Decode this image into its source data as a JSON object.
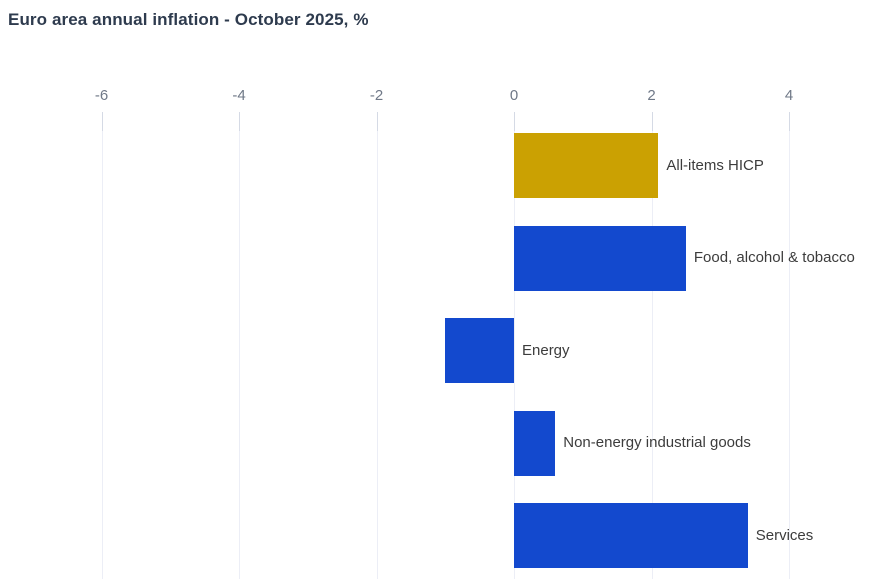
{
  "colors": {
    "background": "#FFFFFF",
    "title": "#2E3B4E",
    "axis_label": "#6F7887",
    "tick_mark": "#D5DAE5",
    "gridline": "#ECEEF6",
    "category_label": "#3C3C3C",
    "highlight_bar": "#CBA102",
    "default_bar": "#1349CE"
  },
  "chart_data": {
    "type": "bar",
    "orientation": "horizontal",
    "title": "Euro area annual inflation - October 2025, %",
    "unit": "%",
    "categories": [
      "All-items HICP",
      "Food, alcohol & tobacco",
      "Energy",
      "Non-energy industrial goods",
      "Services"
    ],
    "values": [
      2.1,
      2.5,
      -1.0,
      0.6,
      3.4
    ],
    "bar_colors": [
      "#CBA102",
      "#1349CE",
      "#1349CE",
      "#1349CE",
      "#1349CE"
    ],
    "x_ticks": [
      -6,
      -4,
      -2,
      0,
      2,
      4
    ],
    "xlim": [
      -7.5,
      5.3
    ],
    "grid": true,
    "legend": false,
    "value_labels_shown": false,
    "axis_position": "top"
  }
}
